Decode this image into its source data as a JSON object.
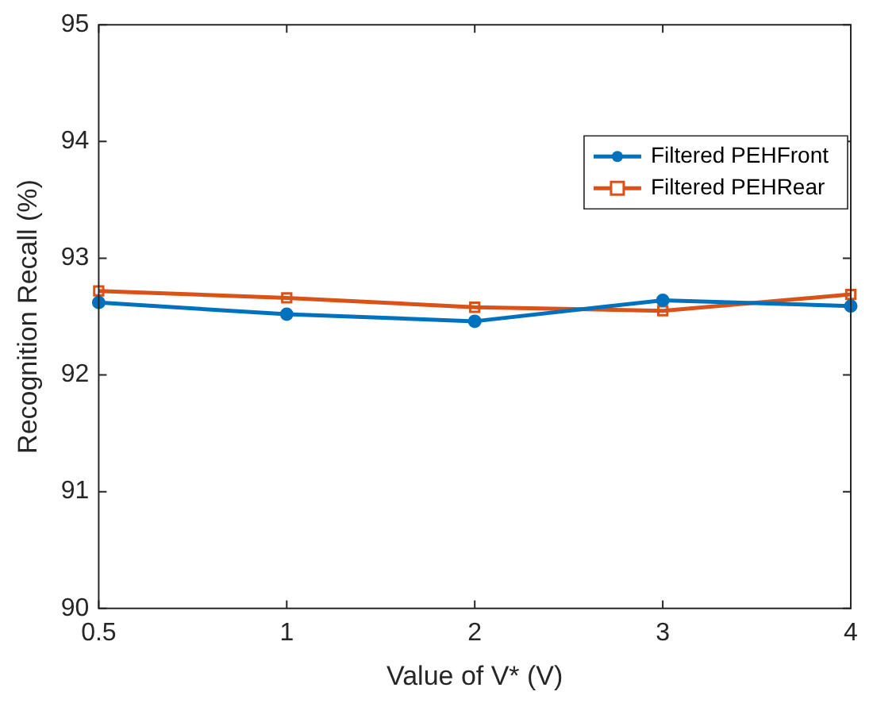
{
  "chart_data": {
    "type": "line",
    "xlabel": "Value of V* (V)",
    "ylabel": "Recognition Recall (%)",
    "categories": [
      "0.5",
      "1",
      "2",
      "3",
      "4"
    ],
    "series": [
      {
        "name": "Filtered PEHFront",
        "color": "#0072bd",
        "marker": "circle",
        "values": [
          92.62,
          92.52,
          92.46,
          92.64,
          92.59
        ]
      },
      {
        "name": "Filtered PEHRear",
        "color": "#d95319",
        "marker": "square",
        "values": [
          92.72,
          92.66,
          92.58,
          92.55,
          92.69
        ]
      }
    ],
    "ylim": [
      90,
      95
    ],
    "yticks": [
      90,
      91,
      92,
      93,
      94,
      95
    ],
    "legend": "top right",
    "grid": false,
    "line_style": "solid"
  }
}
